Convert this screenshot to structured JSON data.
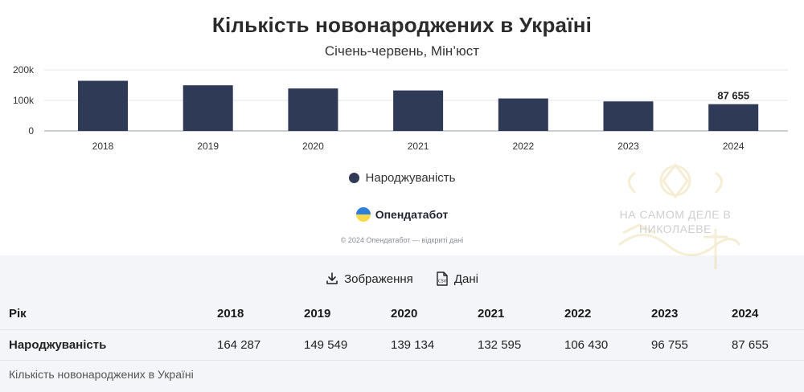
{
  "header": {
    "title": "Кількість новонароджених в Україні",
    "subtitle": "Січень-червень, Мін’юст"
  },
  "chart_data": {
    "type": "bar",
    "categories": [
      "2018",
      "2019",
      "2020",
      "2021",
      "2022",
      "2023",
      "2024"
    ],
    "series": [
      {
        "name": "Народжуваність",
        "values": [
          164287,
          149549,
          139134,
          132595,
          106430,
          96755,
          87655
        ],
        "color": "#2e3a56"
      }
    ],
    "y_ticks": [
      "200k",
      "100k",
      "0"
    ],
    "ylim": [
      0,
      200000
    ],
    "data_labels": [
      {
        "category": "2024",
        "text": "87 655"
      }
    ],
    "legend_position": "bottom-center",
    "grid": true
  },
  "legend": {
    "label": "Народжуваність",
    "color": "#2e3a56"
  },
  "brand": {
    "name": "Опендатабот",
    "icon": "opendatabot-logo-icon"
  },
  "copyright": "© 2024 Опендатабот — відкриті дані",
  "actions": {
    "image_label": "Зображення",
    "image_icon": "download-icon",
    "data_label": "Дані",
    "data_icon": "csv-file-icon"
  },
  "table": {
    "header": [
      "Рік",
      "2018",
      "2019",
      "2020",
      "2021",
      "2022",
      "2023",
      "2024"
    ],
    "rows": [
      [
        "Народжуваність",
        "164 287",
        "149 549",
        "139 134",
        "132 595",
        "106 430",
        "96 755",
        "87 655"
      ]
    ],
    "caption": "Кількість новонароджених в Україні"
  },
  "watermark": {
    "line1": "НА САМОМ ДЕЛЕ В",
    "line2": "НИКОЛАЕВЕ"
  }
}
